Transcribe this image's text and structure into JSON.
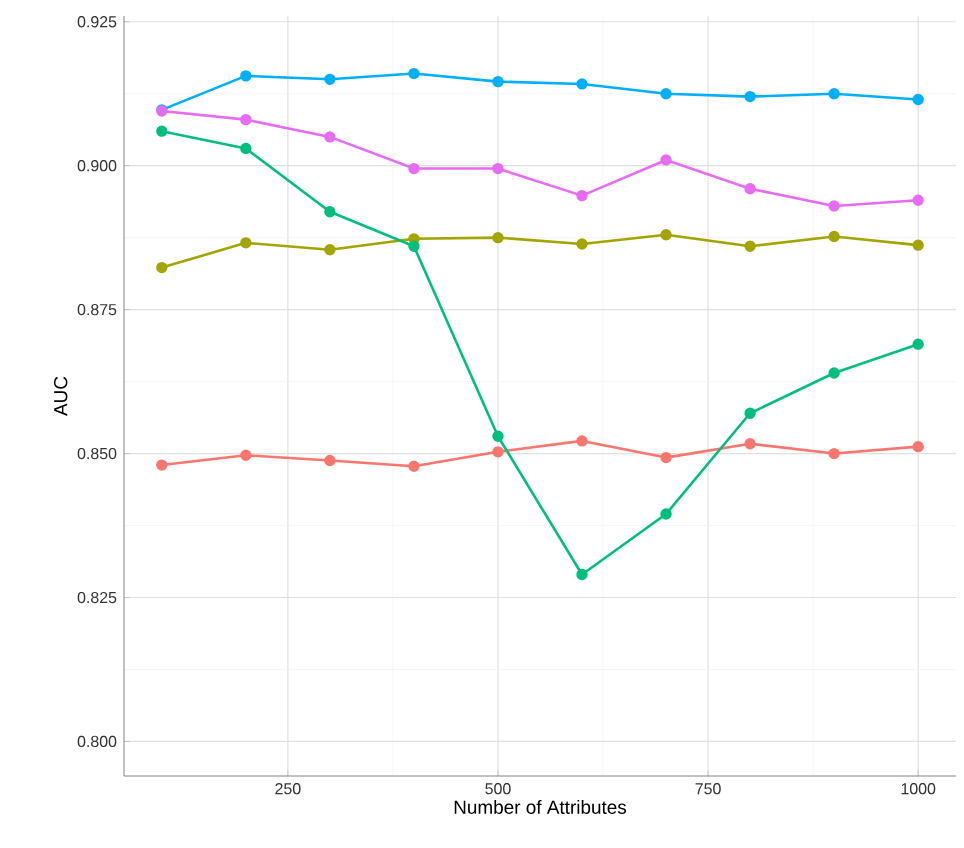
{
  "chart_data": {
    "type": "line",
    "xlabel": "Number of Attributes",
    "ylabel": "AUC",
    "x": [
      100,
      200,
      300,
      400,
      500,
      600,
      700,
      800,
      900,
      1000
    ],
    "series": [
      {
        "color": "#f8766d",
        "values": [
          0.848,
          0.8497,
          0.8488,
          0.8478,
          0.8503,
          0.8522,
          0.8493,
          0.8517,
          0.85,
          0.8512
        ]
      },
      {
        "color": "#a3a500",
        "values": [
          0.8823,
          0.8866,
          0.8854,
          0.8873,
          0.8875,
          0.8864,
          0.888,
          0.886,
          0.8877,
          0.8862
        ]
      },
      {
        "color": "#00bf7d",
        "values": [
          0.906,
          0.903,
          0.892,
          0.886,
          0.853,
          0.829,
          0.8395,
          0.857,
          0.864,
          0.869
        ]
      },
      {
        "color": "#00b0f6",
        "values": [
          0.9097,
          0.9156,
          0.915,
          0.916,
          0.9146,
          0.9142,
          0.9125,
          0.912,
          0.9125,
          0.9115
        ]
      },
      {
        "color": "#e76bf3",
        "values": [
          0.9095,
          0.908,
          0.905,
          0.8995,
          0.8995,
          0.8948,
          0.901,
          0.896,
          0.893,
          0.894
        ]
      }
    ],
    "xlim": [
      55,
      1045
    ],
    "ylim": [
      0.794,
      0.926
    ],
    "xticks": [
      250,
      500,
      750,
      1000
    ],
    "yticks": [
      {
        "value": 0.8,
        "label": "0.800"
      },
      {
        "value": 0.825,
        "label": "0.825"
      },
      {
        "value": 0.85,
        "label": "0.850"
      },
      {
        "value": 0.875,
        "label": "0.875"
      },
      {
        "value": 0.9,
        "label": "0.900"
      },
      {
        "value": 0.925,
        "label": "0.925"
      }
    ],
    "grid": true,
    "marker": "circle",
    "line_style": "solid"
  }
}
